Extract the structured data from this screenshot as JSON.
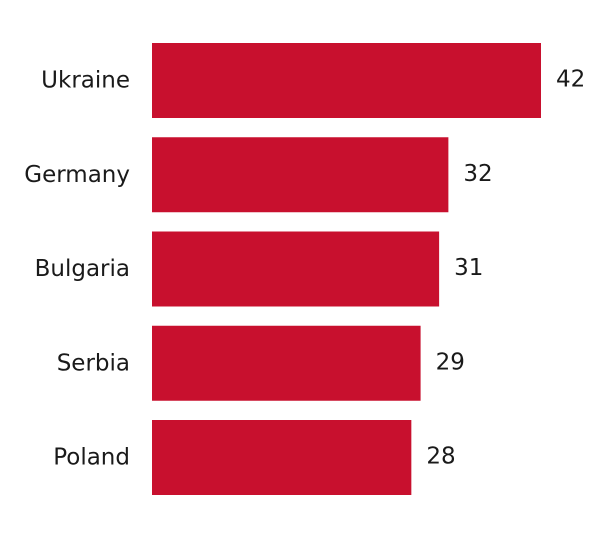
{
  "chart_data": {
    "type": "bar",
    "orientation": "horizontal",
    "categories": [
      "Ukraine",
      "Germany",
      "Bulgaria",
      "Serbia",
      "Poland"
    ],
    "values": [
      42,
      32,
      31,
      29,
      28
    ],
    "title": "",
    "xlabel": "",
    "ylabel": "",
    "xlim": [
      0,
      42
    ],
    "grid": false,
    "legend": "none",
    "data_labels": true,
    "bar_color": "#c8102e"
  }
}
